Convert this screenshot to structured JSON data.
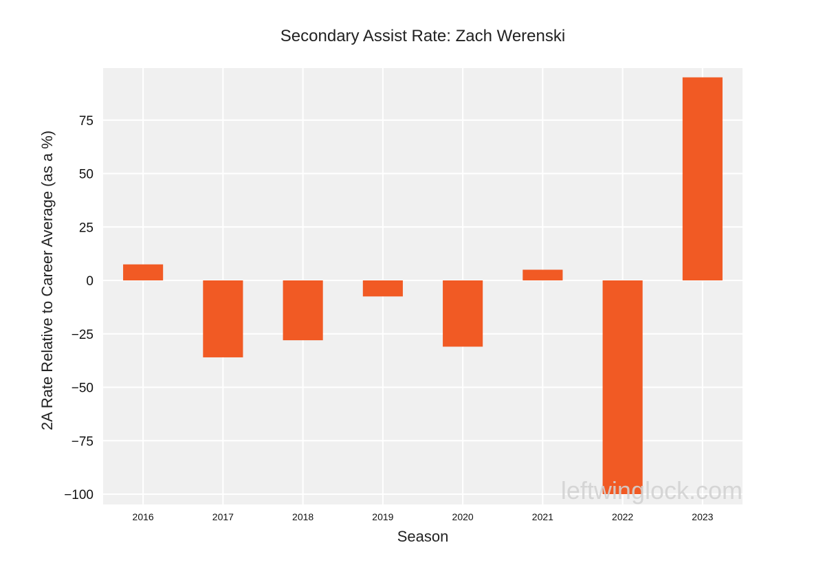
{
  "chart_data": {
    "type": "bar",
    "title": "Secondary Assist Rate: Zach Werenski",
    "xlabel": "Season",
    "ylabel": "2A Rate Relative to Career Average (as a %)",
    "categories": [
      "2016",
      "2017",
      "2018",
      "2019",
      "2020",
      "2021",
      "2022",
      "2023"
    ],
    "values": [
      7.5,
      -36,
      -28,
      -7.5,
      -31,
      5,
      -100,
      95
    ],
    "ylim": [
      -105,
      100
    ],
    "yticks": [
      75,
      50,
      25,
      0,
      -25,
      -50,
      -75,
      -100
    ],
    "ytick_labels": [
      "75",
      "50",
      "25",
      "0",
      "−25",
      "−50",
      "−75",
      "−100"
    ],
    "grid": true,
    "bar_color": "#f15a24",
    "plot_background": "#f0f0f0",
    "grid_color": "#ffffff",
    "watermark": "leftwinglock.com"
  }
}
